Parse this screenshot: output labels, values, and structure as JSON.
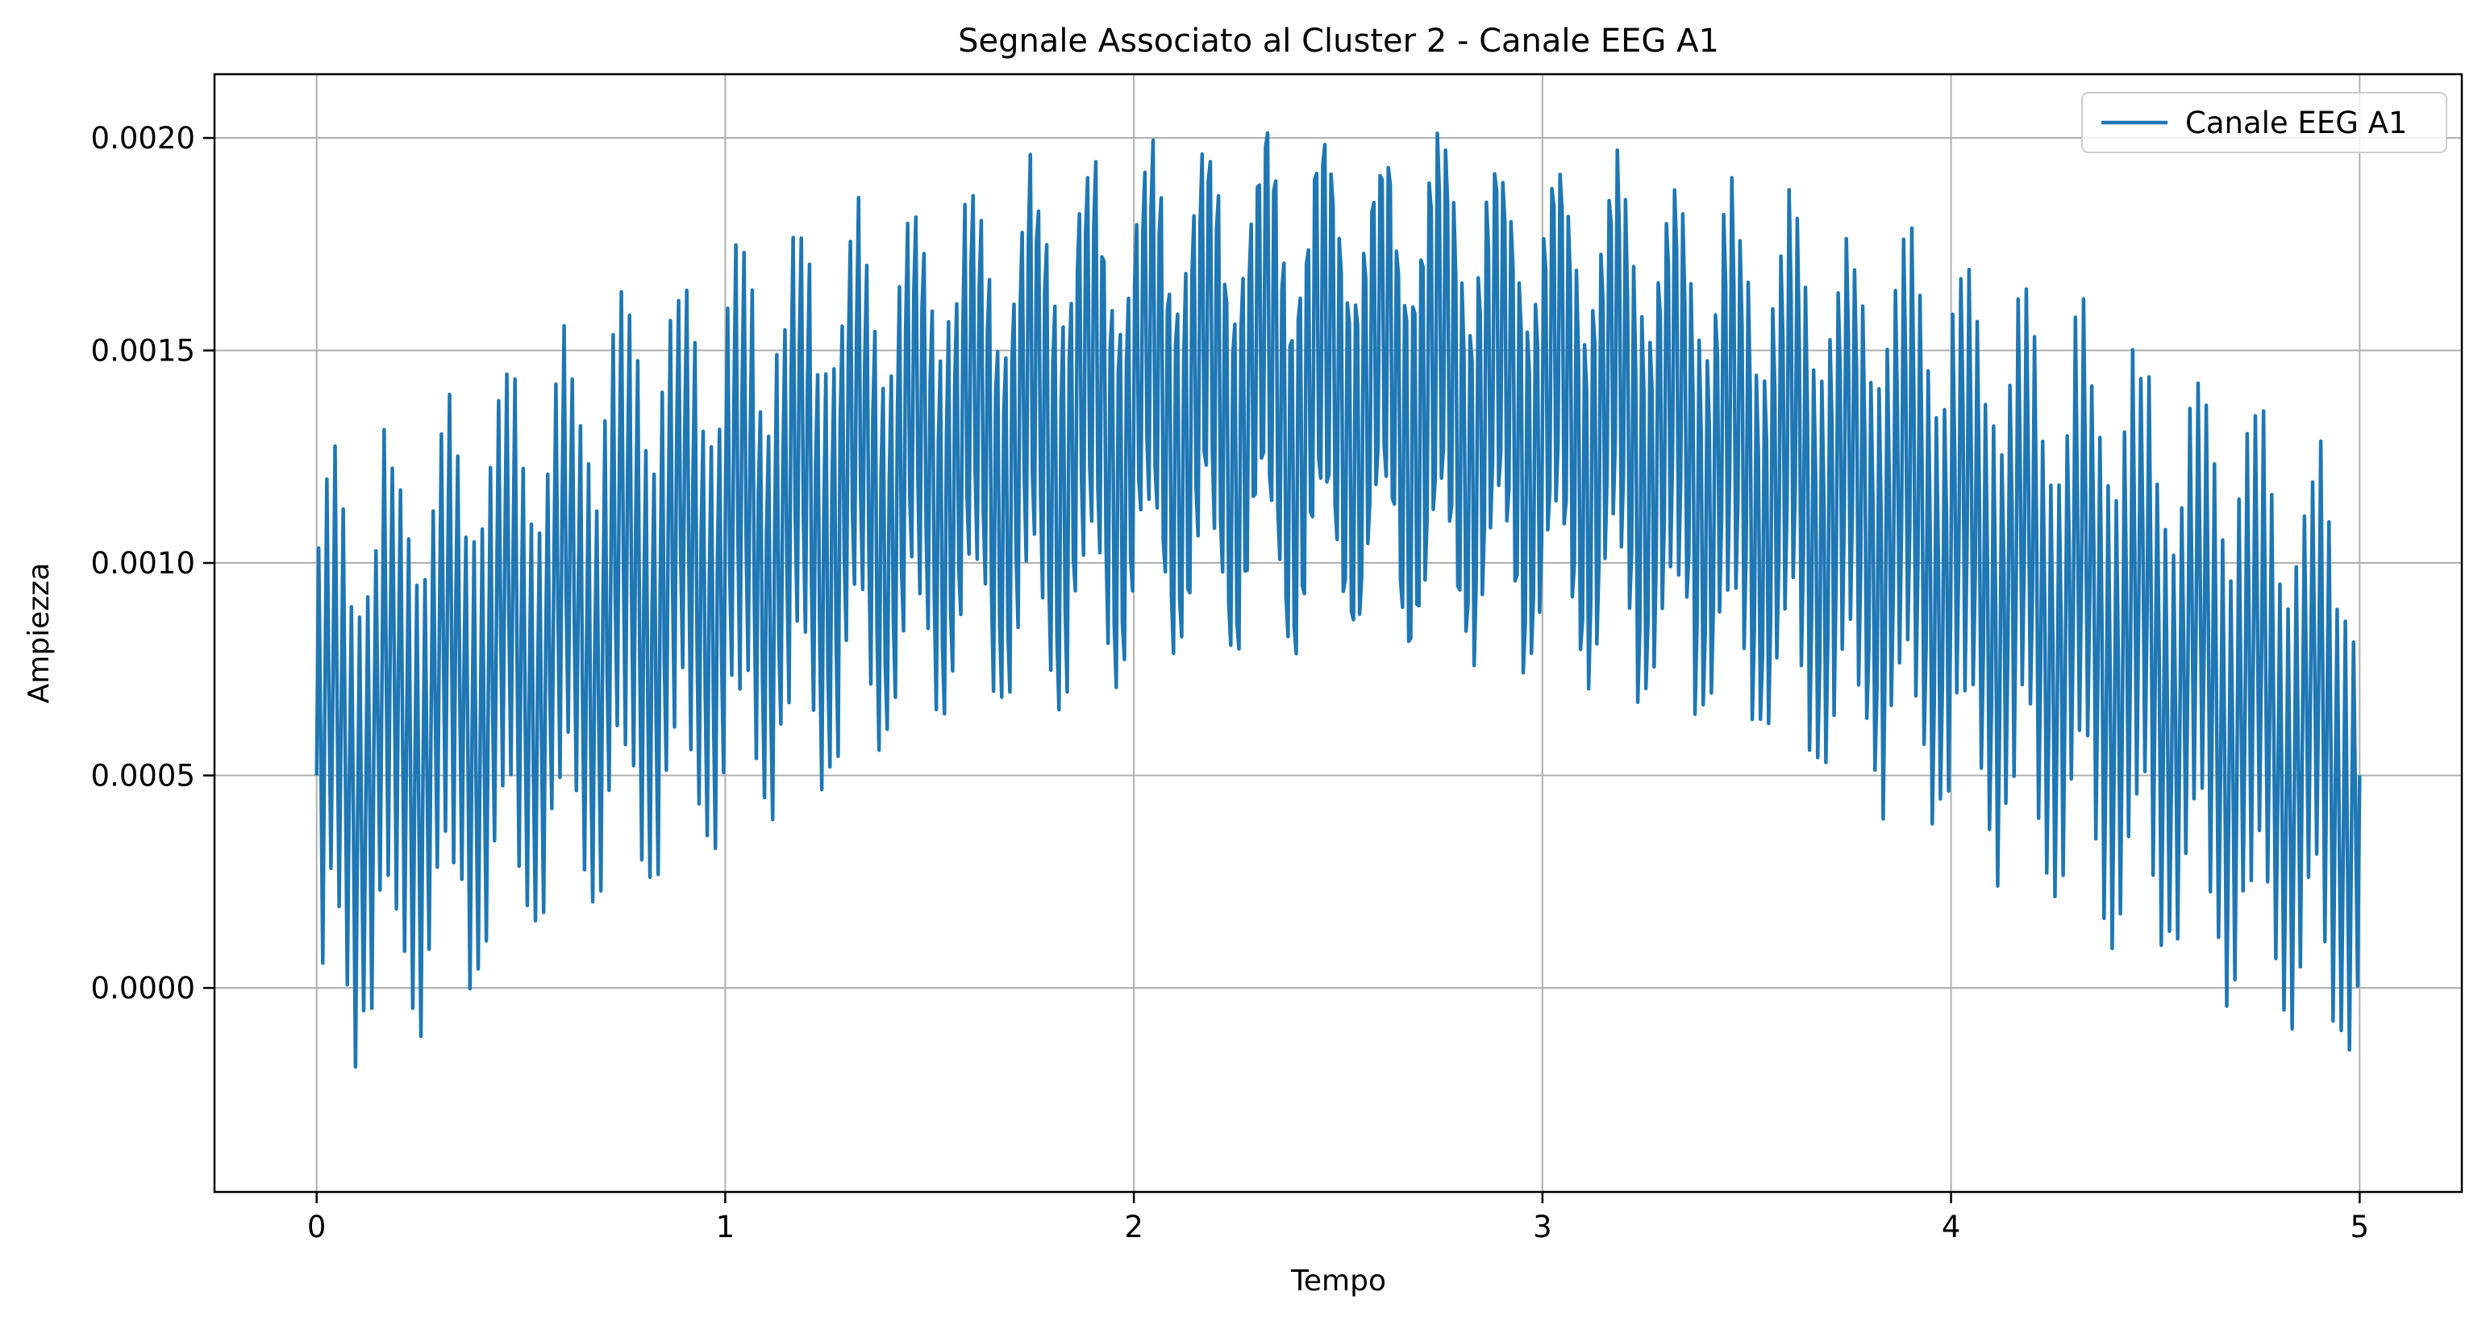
{
  "chart_data": {
    "type": "line",
    "title": "Segnale Associato al Cluster 2 - Canale EEG A1",
    "xlabel": "Tempo",
    "ylabel": "Ampiezza",
    "xlim": [
      -0.25,
      5.25
    ],
    "ylim": [
      -0.00048,
      0.00215
    ],
    "xticks": [
      0,
      1,
      2,
      3,
      4,
      5
    ],
    "xtick_labels": [
      "0",
      "1",
      "2",
      "3",
      "4",
      "5"
    ],
    "yticks": [
      0.0,
      0.0005,
      0.001,
      0.0015,
      0.002
    ],
    "ytick_labels": [
      "0.0000",
      "0.0005",
      "0.0010",
      "0.0015",
      "0.0020"
    ],
    "grid": true,
    "legend_position": "top-right",
    "series": [
      {
        "name": "Canale EEG A1",
        "color": "#1f77b4",
        "signal_model": {
          "x_start": 0,
          "x_end": 5,
          "n_points": 1000,
          "y_start": 0.0005,
          "envelope_min": 0.0005,
          "envelope_peak": 0.0014,
          "oscillation_1_amplitude": 0.0005,
          "oscillation_1_frequency": 50,
          "oscillation_2_amplitude": 0.0002,
          "oscillation_2_frequency": 7
        }
      }
    ]
  },
  "colors": {
    "axis": "#000000",
    "grid": "#b0b0b0",
    "legend_border": "#cccccc"
  }
}
